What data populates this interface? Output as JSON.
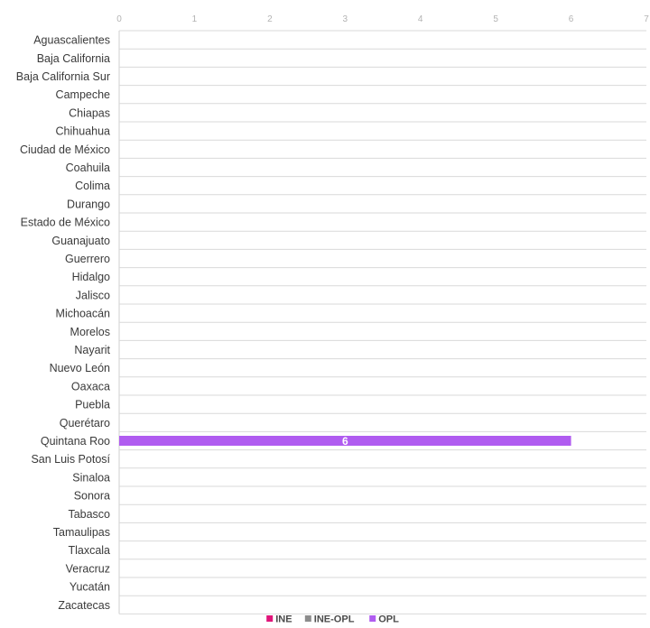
{
  "chart_data": {
    "type": "bar",
    "orientation": "horizontal",
    "categories": [
      "Aguascalientes",
      "Baja California",
      "Baja California Sur",
      "Campeche",
      "Chiapas",
      "Chihuahua",
      "Ciudad de México",
      "Coahuila",
      "Colima",
      "Durango",
      "Estado de México",
      "Guanajuato",
      "Guerrero",
      "Hidalgo",
      "Jalisco",
      "Michoacán",
      "Morelos",
      "Nayarit",
      "Nuevo León",
      "Oaxaca",
      "Puebla",
      "Querétaro",
      "Quintana Roo",
      "San Luis Potosí",
      "Sinaloa",
      "Sonora",
      "Tabasco",
      "Tamaulipas",
      "Tlaxcala",
      "Veracruz",
      "Yucatán",
      "Zacatecas"
    ],
    "stacked": true,
    "series": [
      {
        "name": "INE",
        "color": "#e0157a",
        "values": [
          0,
          0,
          0,
          0,
          0,
          0,
          0,
          0,
          0,
          0,
          0,
          0,
          0,
          0,
          0,
          0,
          0,
          0,
          0,
          0,
          0,
          0,
          0,
          0,
          0,
          0,
          0,
          0,
          0,
          0,
          0,
          0
        ]
      },
      {
        "name": "INE-OPL",
        "color": "#8c8c8c",
        "values": [
          0,
          0,
          0,
          0,
          0,
          0,
          0,
          0,
          0,
          0,
          0,
          0,
          0,
          0,
          0,
          0,
          0,
          0,
          0,
          0,
          0,
          0,
          0,
          0,
          0,
          0,
          0,
          0,
          0,
          0,
          0,
          0
        ]
      },
      {
        "name": "OPL",
        "color": "#b05cf0",
        "values": [
          0,
          0,
          0,
          0,
          0,
          0,
          0,
          0,
          0,
          0,
          0,
          0,
          0,
          0,
          0,
          0,
          0,
          0,
          0,
          0,
          0,
          0,
          6,
          0,
          0,
          0,
          0,
          0,
          0,
          0,
          0,
          0
        ]
      }
    ],
    "xlim": [
      0,
      7
    ],
    "xticks": [
      "0",
      "1",
      "2",
      "3",
      "4",
      "5",
      "6",
      "7"
    ],
    "xaxis_position": "top",
    "grid": "horizontal row separators",
    "legend_position": "bottom-center",
    "data_labels": true
  }
}
